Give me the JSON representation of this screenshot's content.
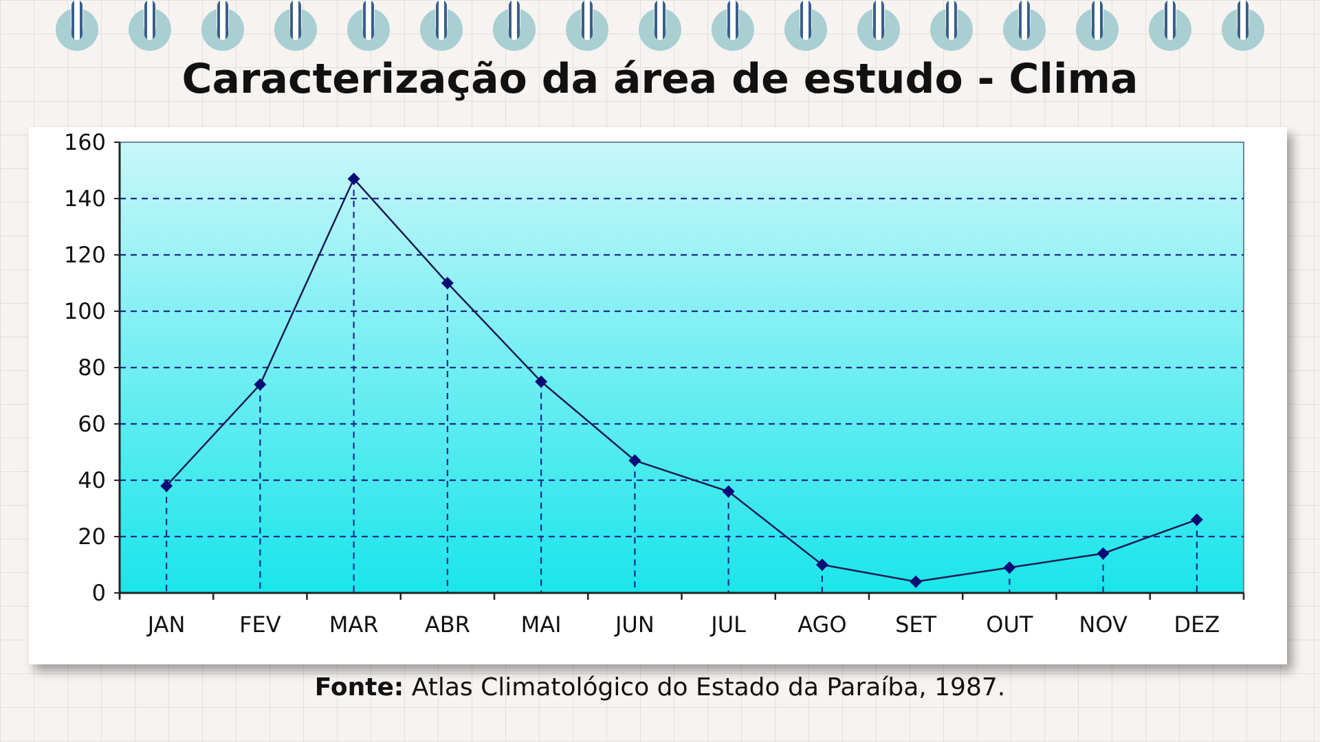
{
  "title": "Caracterização da área de estudo - Clima",
  "source": {
    "label": "Fonte:",
    "text": "Atlas Climatológico do Estado da Paraíba, 1987."
  },
  "colors": {
    "plot_top": "#c8f7fa",
    "plot_bottom": "#1ae5ea",
    "line": "#1a1a50",
    "marker": "#0b0b78",
    "grid": "#1a2a8a",
    "ring": "#a9cfd2",
    "wire": "#3a5f8a"
  },
  "chart_data": {
    "type": "line",
    "title": "",
    "xlabel": "",
    "ylabel": "",
    "ylim": [
      0,
      160
    ],
    "yticks": [
      0,
      20,
      40,
      60,
      80,
      100,
      120,
      140,
      160
    ],
    "ytick_labels": [
      "0",
      "20",
      "40",
      "60",
      "80",
      "100",
      "120",
      "140",
      "160"
    ],
    "grid": true,
    "categories": [
      "JAN",
      "FEV",
      "MAR",
      "ABR",
      "MAI",
      "JUN",
      "JUL",
      "AGO",
      "SET",
      "OUT",
      "NOV",
      "DEZ"
    ],
    "series": [
      {
        "values": [
          38,
          74,
          147,
          110,
          75,
          47,
          36,
          10,
          4,
          9,
          14,
          26
        ]
      }
    ]
  }
}
